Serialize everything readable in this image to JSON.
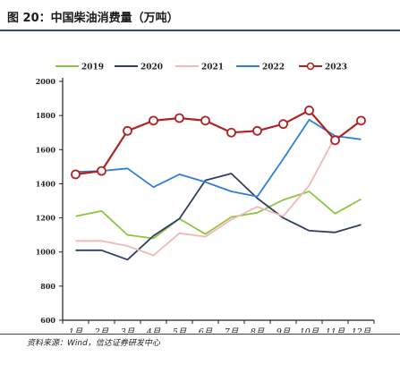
{
  "page": {
    "title": "图 20：中国柴油消费量（万吨）",
    "source": "资料来源：Wind，信达证券研发中心"
  },
  "chart_data": {
    "type": "line",
    "title": "",
    "xlabel": "",
    "ylabel": "",
    "categories": [
      "1月",
      "2月",
      "3月",
      "4月",
      "5月",
      "6月",
      "7月",
      "8月",
      "9月",
      "10月",
      "11月",
      "12月"
    ],
    "ylim": [
      600,
      2000
    ],
    "yticks": [
      600,
      800,
      1000,
      1200,
      1400,
      1600,
      1800,
      2000
    ],
    "legend_position": "top",
    "series": [
      {
        "name": "2019",
        "color": "#8cc63f",
        "marker": "none",
        "values": [
          1210,
          1240,
          1100,
          1080,
          1195,
          1105,
          1205,
          1230,
          1305,
          1355,
          1225,
          1310
        ]
      },
      {
        "name": "2020",
        "color": "#2e3f66",
        "marker": "none",
        "values": [
          1010,
          1010,
          955,
          1095,
          1195,
          1420,
          1460,
          1315,
          1200,
          1125,
          1115,
          1160
        ]
      },
      {
        "name": "2021",
        "color": "#f4b6b6",
        "marker": "none",
        "values": [
          1065,
          1065,
          1035,
          980,
          1110,
          1090,
          1190,
          1265,
          1210,
          1390,
          1675,
          null
        ]
      },
      {
        "name": "2022",
        "color": "#2f7fd8",
        "marker": "none",
        "values": [
          1470,
          1475,
          1490,
          1380,
          1455,
          1410,
          1355,
          1325,
          1545,
          1775,
          1680,
          1660
        ]
      },
      {
        "name": "2023",
        "color": "#b22222",
        "marker": "circle",
        "values": [
          1455,
          1475,
          1710,
          1770,
          1785,
          1770,
          1700,
          1710,
          1750,
          1830,
          1655,
          1770
        ]
      }
    ]
  }
}
